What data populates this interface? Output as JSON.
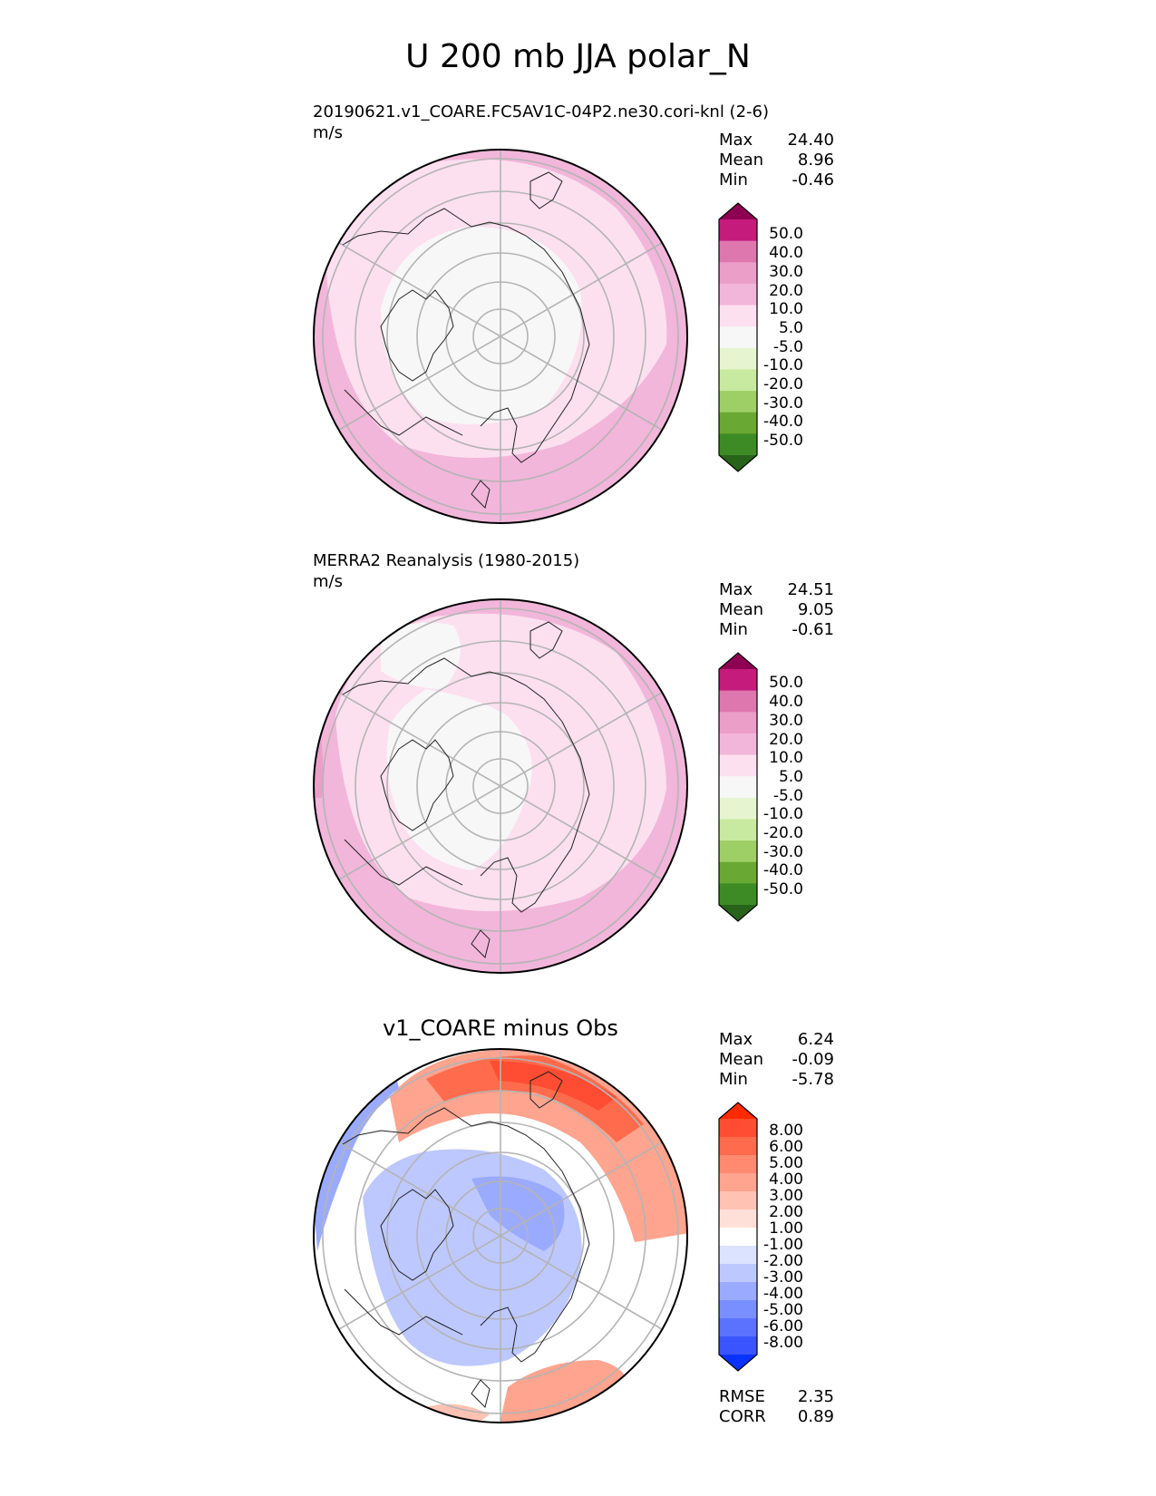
{
  "figure": {
    "title": "U 200 mb JJA polar_N"
  },
  "chart_data": [
    {
      "type": "heatmap",
      "projection": "north-polar-stereographic",
      "title": "20190621.v1_COARE.FC5AV1C-04P2.ne30.cori-knl (2-6)",
      "units": "m/s",
      "stats": [
        {
          "name": "Max",
          "value": "24.40"
        },
        {
          "name": "Mean",
          "value": "8.96"
        },
        {
          "name": "Min",
          "value": "-0.46"
        }
      ],
      "colorbar": {
        "levels": [
          "50.0",
          "40.0",
          "30.0",
          "20.0",
          "10.0",
          "5.0",
          "-5.0",
          "-10.0",
          "-20.0",
          "-30.0",
          "-40.0",
          "-50.0"
        ],
        "colors": [
          "#8e0152",
          "#c51b7d",
          "#de77ae",
          "#ea9ec8",
          "#f1b6da",
          "#fde0ef",
          "#f7f7f7",
          "#e6f5d0",
          "#c7e9a0",
          "#9dcf66",
          "#69a832",
          "#3d8b24",
          "#276419"
        ]
      }
    },
    {
      "type": "heatmap",
      "projection": "north-polar-stereographic",
      "title": "MERRA2 Reanalysis (1980-2015)",
      "units": "m/s",
      "stats": [
        {
          "name": "Max",
          "value": "24.51"
        },
        {
          "name": "Mean",
          "value": "9.05"
        },
        {
          "name": "Min",
          "value": "-0.61"
        }
      ],
      "colorbar": {
        "levels": [
          "50.0",
          "40.0",
          "30.0",
          "20.0",
          "10.0",
          "5.0",
          "-5.0",
          "-10.0",
          "-20.0",
          "-30.0",
          "-40.0",
          "-50.0"
        ],
        "colors": [
          "#8e0152",
          "#c51b7d",
          "#de77ae",
          "#ea9ec8",
          "#f1b6da",
          "#fde0ef",
          "#f7f7f7",
          "#e6f5d0",
          "#c7e9a0",
          "#9dcf66",
          "#69a832",
          "#3d8b24",
          "#276419"
        ]
      }
    },
    {
      "type": "heatmap",
      "projection": "north-polar-stereographic",
      "title": "v1_COARE minus Obs",
      "units": "",
      "stats": [
        {
          "name": "Max",
          "value": "6.24"
        },
        {
          "name": "Mean",
          "value": "-0.09"
        },
        {
          "name": "Min",
          "value": "-5.78"
        }
      ],
      "metrics": [
        {
          "name": "RMSE",
          "value": "2.35"
        },
        {
          "name": "CORR",
          "value": "0.89"
        }
      ],
      "colorbar": {
        "levels": [
          "8.00",
          "6.00",
          "5.00",
          "4.00",
          "3.00",
          "2.00",
          "1.00",
          "-1.00",
          "-2.00",
          "-3.00",
          "-4.00",
          "-5.00",
          "-6.00",
          "-8.00"
        ],
        "colors": [
          "#ff2a00",
          "#ff4d33",
          "#ff6b4d",
          "#ff8a70",
          "#ffa48f",
          "#ffc2b3",
          "#ffe0d8",
          "#ffffff",
          "#dce3ff",
          "#bcc8ff",
          "#9aabff",
          "#7a8fff",
          "#5a72ff",
          "#3a55ff",
          "#0a32ff"
        ]
      }
    }
  ]
}
